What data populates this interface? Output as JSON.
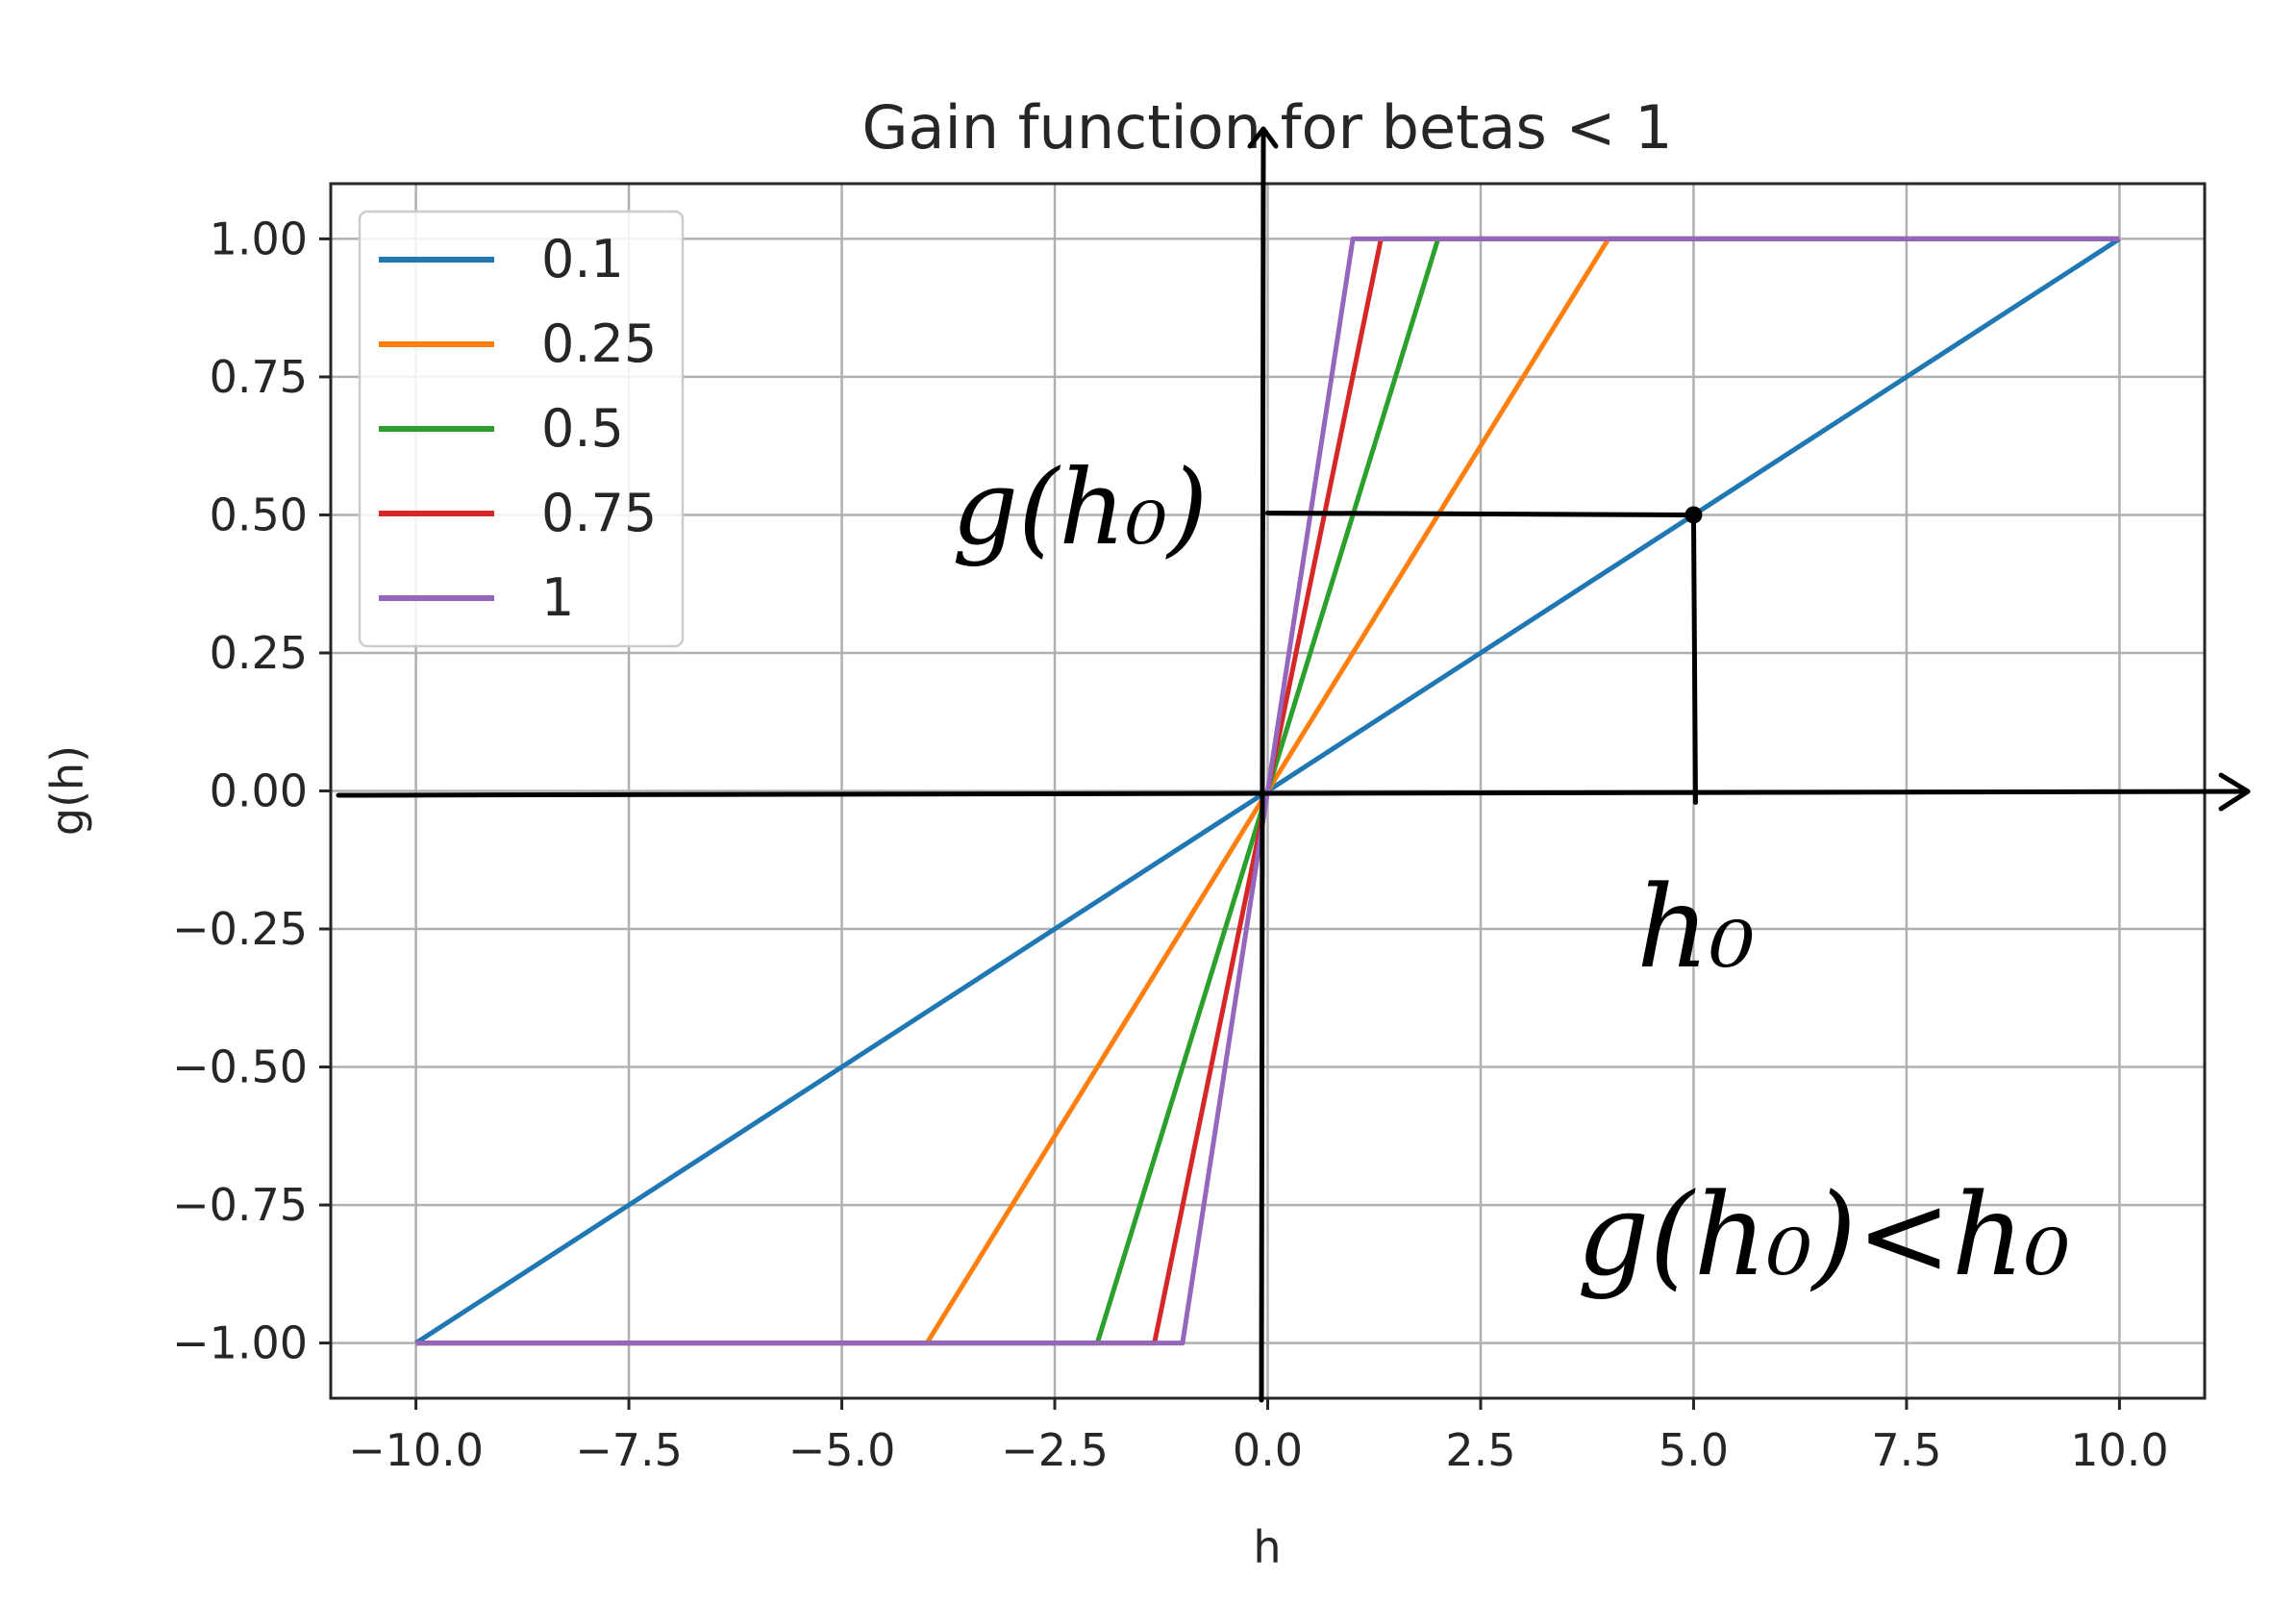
{
  "chart_data": {
    "type": "line",
    "title": "Gain function for betas < 1",
    "xlabel": "h",
    "ylabel": "g(h)",
    "xlim": [
      -11,
      11
    ],
    "ylim": [
      -1.1,
      1.1
    ],
    "grid": true,
    "legend_position": "top-left",
    "x_ticks": [
      "−10.0",
      "−7.5",
      "−5.0",
      "−2.5",
      "0.0",
      "2.5",
      "5.0",
      "7.5",
      "10.0"
    ],
    "x_tick_values": [
      -10,
      -7.5,
      -5,
      -2.5,
      0,
      2.5,
      5,
      7.5,
      10
    ],
    "y_ticks": [
      "1.00",
      "0.75",
      "0.50",
      "0.25",
      "0.00",
      "−0.25",
      "−0.50",
      "−0.75",
      "−1.00"
    ],
    "y_tick_values": [
      1,
      0.75,
      0.5,
      0.25,
      0,
      -0.25,
      -0.5,
      -0.75,
      -1
    ],
    "series": [
      {
        "name": "0.1",
        "color": "#1f77b4",
        "x": [
          -10,
          10
        ],
        "y": [
          -1,
          1
        ]
      },
      {
        "name": "0.25",
        "color": "#ff7f0e",
        "x": [
          -10,
          -4,
          4,
          10
        ],
        "y": [
          -1,
          -1,
          1,
          1
        ]
      },
      {
        "name": "0.5",
        "color": "#2ca02c",
        "x": [
          -10,
          -2,
          2,
          10
        ],
        "y": [
          -1,
          -1,
          1,
          1
        ]
      },
      {
        "name": "0.75",
        "color": "#d62728",
        "x": [
          -10,
          -1.33,
          1.33,
          10
        ],
        "y": [
          -1,
          -1,
          1,
          1
        ]
      },
      {
        "name": "1",
        "color": "#9467bd",
        "x": [
          -10,
          -1,
          1,
          10
        ],
        "y": [
          -1,
          -1,
          1,
          1
        ]
      }
    ],
    "annotations": {
      "point": {
        "x": 5,
        "y": 0.5
      },
      "y_marker_label": "g(h₀)",
      "x_marker_label": "h₀",
      "inequality": "g(h₀)<h₀"
    }
  }
}
